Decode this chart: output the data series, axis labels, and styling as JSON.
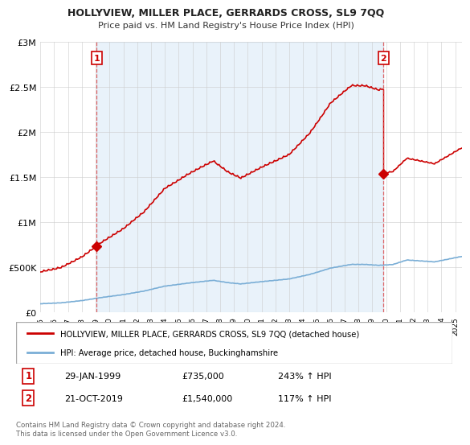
{
  "title": "HOLLYVIEW, MILLER PLACE, GERRARDS CROSS, SL9 7QQ",
  "subtitle": "Price paid vs. HM Land Registry's House Price Index (HPI)",
  "legend_line1": "HOLLYVIEW, MILLER PLACE, GERRARDS CROSS, SL9 7QQ (detached house)",
  "legend_line2": "HPI: Average price, detached house, Buckinghamshire",
  "footer": "Contains HM Land Registry data © Crown copyright and database right 2024.\nThis data is licensed under the Open Government Licence v3.0.",
  "sale1_label": "1",
  "sale1_date": "29-JAN-1999",
  "sale1_price": "£735,000",
  "sale1_hpi": "243% ↑ HPI",
  "sale2_label": "2",
  "sale2_date": "21-OCT-2019",
  "sale2_price": "£1,540,000",
  "sale2_hpi": "117% ↑ HPI",
  "sale1_year": 1999.08,
  "sale1_value": 735000,
  "sale2_year": 2019.81,
  "sale2_value": 1540000,
  "ylim": [
    0,
    3000000
  ],
  "yticks": [
    0,
    500000,
    1000000,
    1500000,
    2000000,
    2500000,
    3000000
  ],
  "ytick_labels": [
    "£0",
    "£500K",
    "£1M",
    "£1.5M",
    "£2M",
    "£2.5M",
    "£3M"
  ],
  "xlim_start": 1995.0,
  "xlim_end": 2025.5,
  "red_line_color": "#cc0000",
  "blue_line_color": "#7aaed6",
  "dashed_line_color": "#dd4444",
  "grid_color": "#cccccc",
  "background_color": "#ffffff",
  "shade_color": "#ddeeff"
}
